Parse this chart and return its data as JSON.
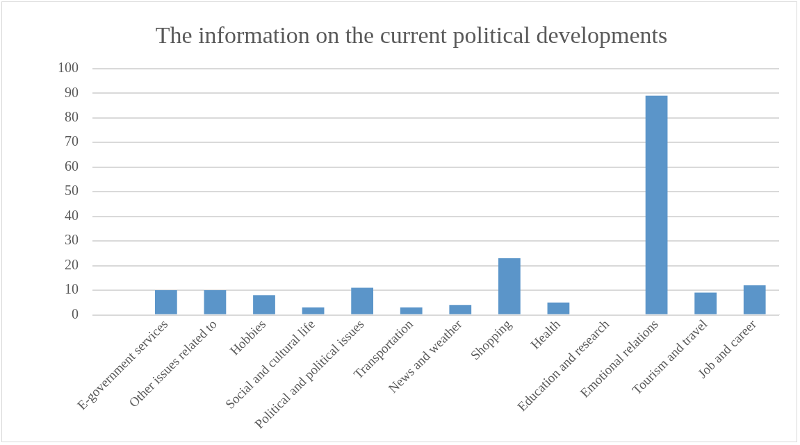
{
  "chart_data": {
    "type": "bar",
    "title": "The information on the current political developments",
    "categories": [
      null,
      "E-government services",
      "Other issues related to",
      "Hobbies",
      "Social and cultural life",
      "Political and political issues",
      "Transportation",
      "News and weather",
      "Shopping",
      "Health",
      "Education and research",
      "Emotional relations",
      "Tourism and travel",
      "Job and career"
    ],
    "values": [
      null,
      10,
      10,
      8,
      3,
      11,
      3,
      4,
      23,
      5,
      0,
      89,
      9,
      12
    ],
    "color": "#5b95c9",
    "ylim": [
      0,
      100
    ],
    "yticks": [
      0,
      10,
      20,
      30,
      40,
      50,
      60,
      70,
      80,
      90,
      100
    ],
    "grid": "y",
    "legend": false
  }
}
